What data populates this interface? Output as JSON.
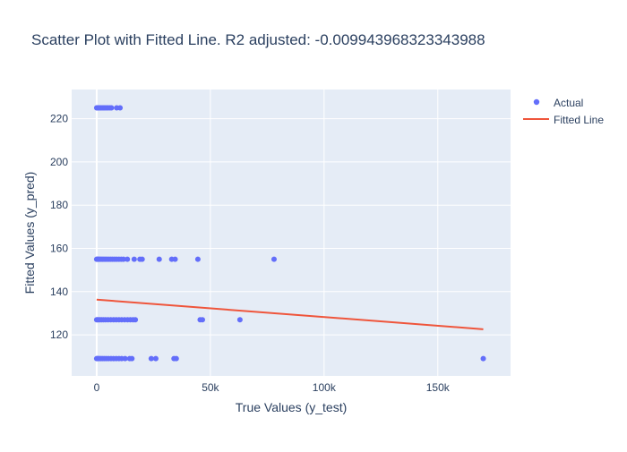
{
  "chart_data": {
    "type": "scatter",
    "title": "Scatter Plot with Fitted Line. R2 adjusted: -0.009943968323343988",
    "xlabel": "True Values (y_test)",
    "ylabel": "Fitted Values (y_pred)",
    "xlim": [
      -11000,
      182000
    ],
    "ylim": [
      101,
      233.5
    ],
    "x_ticks": [
      {
        "value": 0,
        "label": "0"
      },
      {
        "value": 50000,
        "label": "50k"
      },
      {
        "value": 100000,
        "label": "100k"
      },
      {
        "value": 150000,
        "label": "150k"
      }
    ],
    "y_ticks": [
      {
        "value": 120,
        "label": "120"
      },
      {
        "value": 140,
        "label": "140"
      },
      {
        "value": 160,
        "label": "160"
      },
      {
        "value": 180,
        "label": "180"
      },
      {
        "value": 200,
        "label": "200"
      },
      {
        "value": 220,
        "label": "220"
      }
    ],
    "grid": true,
    "legend_position": "top-right",
    "series": [
      {
        "name": "Actual",
        "mode": "markers",
        "color": "#636efa",
        "points": [
          {
            "x": 0,
            "y": 225
          },
          {
            "x": 200,
            "y": 225
          },
          {
            "x": 500,
            "y": 225
          },
          {
            "x": 900,
            "y": 225
          },
          {
            "x": 1300,
            "y": 225
          },
          {
            "x": 1800,
            "y": 225
          },
          {
            "x": 2400,
            "y": 225
          },
          {
            "x": 3000,
            "y": 225
          },
          {
            "x": 3600,
            "y": 225
          },
          {
            "x": 4300,
            "y": 225
          },
          {
            "x": 5000,
            "y": 225
          },
          {
            "x": 5800,
            "y": 225
          },
          {
            "x": 6500,
            "y": 225
          },
          {
            "x": 8800,
            "y": 225
          },
          {
            "x": 10300,
            "y": 225
          },
          {
            "x": 0,
            "y": 155
          },
          {
            "x": 300,
            "y": 155
          },
          {
            "x": 600,
            "y": 155
          },
          {
            "x": 1000,
            "y": 155
          },
          {
            "x": 1500,
            "y": 155
          },
          {
            "x": 2000,
            "y": 155
          },
          {
            "x": 2600,
            "y": 155
          },
          {
            "x": 3200,
            "y": 155
          },
          {
            "x": 3900,
            "y": 155
          },
          {
            "x": 4600,
            "y": 155
          },
          {
            "x": 5400,
            "y": 155
          },
          {
            "x": 6200,
            "y": 155
          },
          {
            "x": 7000,
            "y": 155
          },
          {
            "x": 7900,
            "y": 155
          },
          {
            "x": 8800,
            "y": 155
          },
          {
            "x": 9800,
            "y": 155
          },
          {
            "x": 10800,
            "y": 155
          },
          {
            "x": 11800,
            "y": 155
          },
          {
            "x": 13500,
            "y": 155
          },
          {
            "x": 16500,
            "y": 155
          },
          {
            "x": 19000,
            "y": 155
          },
          {
            "x": 20000,
            "y": 155
          },
          {
            "x": 27500,
            "y": 155
          },
          {
            "x": 33000,
            "y": 155
          },
          {
            "x": 34500,
            "y": 155
          },
          {
            "x": 44500,
            "y": 155
          },
          {
            "x": 78000,
            "y": 155
          },
          {
            "x": 0,
            "y": 127
          },
          {
            "x": 400,
            "y": 127
          },
          {
            "x": 900,
            "y": 127
          },
          {
            "x": 1500,
            "y": 127
          },
          {
            "x": 2200,
            "y": 127
          },
          {
            "x": 3000,
            "y": 127
          },
          {
            "x": 3900,
            "y": 127
          },
          {
            "x": 5000,
            "y": 127
          },
          {
            "x": 6200,
            "y": 127
          },
          {
            "x": 7400,
            "y": 127
          },
          {
            "x": 8600,
            "y": 127
          },
          {
            "x": 9800,
            "y": 127
          },
          {
            "x": 11000,
            "y": 127
          },
          {
            "x": 12300,
            "y": 127
          },
          {
            "x": 13600,
            "y": 127
          },
          {
            "x": 14800,
            "y": 127
          },
          {
            "x": 16000,
            "y": 127
          },
          {
            "x": 17000,
            "y": 127
          },
          {
            "x": 45500,
            "y": 127
          },
          {
            "x": 46500,
            "y": 127
          },
          {
            "x": 63000,
            "y": 127
          },
          {
            "x": 0,
            "y": 109
          },
          {
            "x": 300,
            "y": 109
          },
          {
            "x": 700,
            "y": 109
          },
          {
            "x": 1200,
            "y": 109
          },
          {
            "x": 1800,
            "y": 109
          },
          {
            "x": 2500,
            "y": 109
          },
          {
            "x": 3300,
            "y": 109
          },
          {
            "x": 4200,
            "y": 109
          },
          {
            "x": 5200,
            "y": 109
          },
          {
            "x": 6300,
            "y": 109
          },
          {
            "x": 7400,
            "y": 109
          },
          {
            "x": 8600,
            "y": 109
          },
          {
            "x": 9800,
            "y": 109
          },
          {
            "x": 11000,
            "y": 109
          },
          {
            "x": 12500,
            "y": 109
          },
          {
            "x": 14500,
            "y": 109
          },
          {
            "x": 15500,
            "y": 109
          },
          {
            "x": 24000,
            "y": 109
          },
          {
            "x": 26000,
            "y": 109
          },
          {
            "x": 34000,
            "y": 109
          },
          {
            "x": 35000,
            "y": 109
          },
          {
            "x": 170000,
            "y": 109
          }
        ]
      },
      {
        "name": "Fitted Line",
        "mode": "lines",
        "color": "#ef553b",
        "points": [
          {
            "x": 0,
            "y": 136.3
          },
          {
            "x": 170000,
            "y": 122.6
          }
        ]
      }
    ]
  }
}
